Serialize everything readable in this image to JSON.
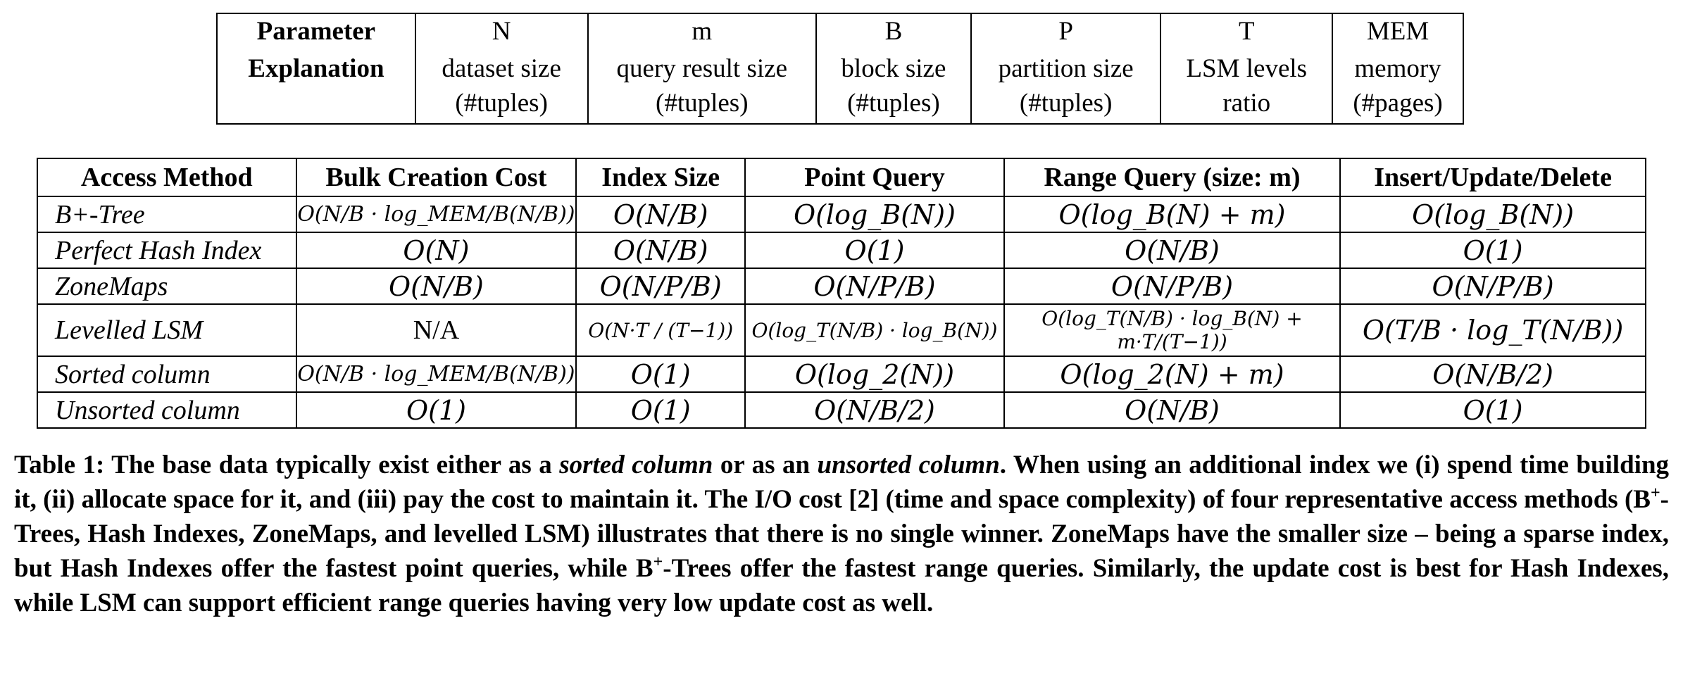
{
  "params": {
    "header_label": "Parameter",
    "expl_label": "Explanation",
    "columns": [
      {
        "symbol": "N",
        "line1": "dataset size",
        "line2": "(#tuples)"
      },
      {
        "symbol": "m",
        "line1": "query result size",
        "line2": "(#tuples)"
      },
      {
        "symbol": "B",
        "line1": "block size",
        "line2": "(#tuples)"
      },
      {
        "symbol": "P",
        "line1": "partition size",
        "line2": "(#tuples)"
      },
      {
        "symbol": "T",
        "line1": "LSM levels",
        "line2": "ratio"
      },
      {
        "symbol": "MEM",
        "line1": "memory",
        "line2": "(#pages)"
      }
    ]
  },
  "costs": {
    "headers": [
      "Access Method",
      "Bulk Creation Cost",
      "Index Size",
      "Point Query",
      "Range Query (size: m)",
      "Insert/Update/Delete"
    ],
    "rows": [
      {
        "method": "B+-Tree",
        "cells": [
          "O(N/B · log_MEM/B(N/B))",
          "O(N/B)",
          "O(log_B(N))",
          "O(log_B(N) + m)",
          "O(log_B(N))"
        ]
      },
      {
        "method": "Perfect Hash Index",
        "cells": [
          "O(N)",
          "O(N/B)",
          "O(1)",
          "O(N/B)",
          "O(1)"
        ]
      },
      {
        "method": "ZoneMaps",
        "cells": [
          "O(N/B)",
          "O(N/P/B)",
          "O(N/P/B)",
          "O(N/P/B)",
          "O(N/P/B)"
        ]
      },
      {
        "method": "Levelled LSM",
        "cells": [
          "N/A",
          "O(N·T / (T−1))",
          "O(log_T(N/B) · log_B(N))",
          "O(log_T(N/B) · log_B(N) + m·T/(T−1))",
          "O(T/B · log_T(N/B))"
        ]
      },
      {
        "method": "Sorted column",
        "cells": [
          "O(N/B · log_MEM/B(N/B))",
          "O(1)",
          "O(log_2(N))",
          "O(log_2(N) + m)",
          "O(N/B/2)"
        ]
      },
      {
        "method": "Unsorted column",
        "cells": [
          "O(1)",
          "O(1)",
          "O(N/B/2)",
          "O(N/B)",
          "O(1)"
        ]
      }
    ]
  },
  "caption": {
    "p1": "Table 1: The base data typically exist either as a ",
    "it1": "sorted column",
    "p2": " or as an ",
    "it2": "unsorted column",
    "p3": ". When using an additional index we (i) spend time building it, (ii) allocate space for it, and (iii) pay the cost to maintain it. The I/O cost [2] (time and space complexity) of four representative access methods (B",
    "sup1": "+",
    "p4": "-Trees, Hash Indexes, ZoneMaps, and levelled LSM) illustrates that there is no single winner. ZoneMaps have the smaller size – being a sparse index, but Hash Indexes offer the fastest point queries, while B",
    "sup2": "+",
    "p5": "-Trees offer the fastest range queries. Similarly, the update cost is best for Hash Indexes, while LSM can support efficient range queries having very low update cost as well."
  }
}
